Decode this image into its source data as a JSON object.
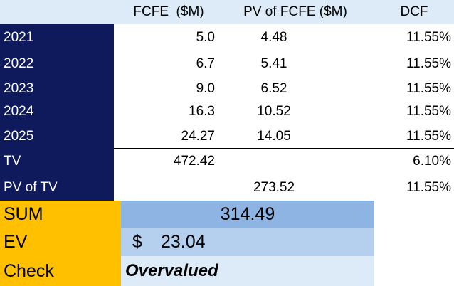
{
  "headers": {
    "fcfe": "FCFE  ($M)",
    "pv_fcfe": "PV of FCFE ($M)",
    "dcf": "DCF"
  },
  "rows": [
    {
      "label": "2021",
      "fcfe": "5.0",
      "pv": "4.48",
      "dcf": "11.55%"
    },
    {
      "label": "2022",
      "fcfe": "6.7",
      "pv": "5.41",
      "dcf": "11.55%"
    },
    {
      "label": "2023",
      "fcfe": "9.0",
      "pv": "6.52",
      "dcf": "11.55%"
    },
    {
      "label": "2024",
      "fcfe": "16.3",
      "pv": "10.52",
      "dcf": "11.55%"
    },
    {
      "label": "2025",
      "fcfe": "24.27",
      "pv": "14.05",
      "dcf": "11.55%"
    },
    {
      "label": "TV",
      "fcfe": "472.42",
      "pv": "",
      "dcf": "6.10%"
    },
    {
      "label": "PV of TV",
      "fcfe": "",
      "pv": "273.52",
      "dcf": "11.55%"
    }
  ],
  "summary": {
    "sum_label": "SUM",
    "sum_value": "314.49",
    "ev_label": "EV",
    "ev_currency": "$",
    "ev_value": "23.04",
    "check_label": "Check",
    "check_value": "Overvalued"
  },
  "colors": {
    "label_column": "#0f1a5c",
    "summary_label": "#ffc000",
    "sum_fill": "#8db4e2",
    "ev_fill": "#b4d0ee",
    "check_fill": "#dcebf7"
  }
}
